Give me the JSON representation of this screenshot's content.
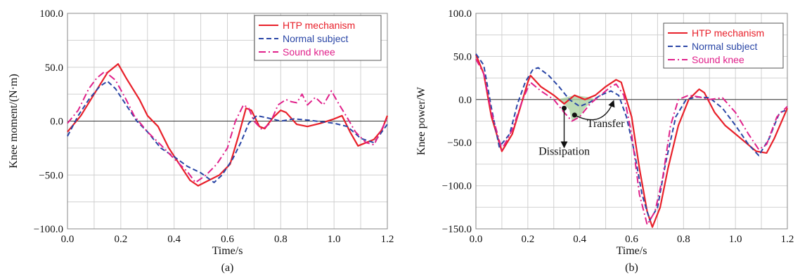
{
  "colors": {
    "htp": "#e8202a",
    "normal": "#2a46a6",
    "sound": "#e0208a",
    "grid": "#d0d0d0",
    "shade": "#a8cf9c"
  },
  "chart_data": [
    {
      "type": "line",
      "panel_label": "(a)",
      "xlabel": "Time/s",
      "ylabel": "Knee moment/(N·m)",
      "xlim": [
        0,
        1.2
      ],
      "ylim": [
        -100,
        100
      ],
      "x_ticks": [
        "0.0",
        "0.2",
        "0.4",
        "0.6",
        "0.8",
        "1.0",
        "1.2"
      ],
      "y_ticks": [
        "100.0",
        "50.0",
        "0.0",
        "−50.0",
        "−100.0"
      ],
      "grid": true,
      "legend": "top-right",
      "series": [
        {
          "name": "HTP mechanism",
          "style": "solid",
          "color": "htp",
          "points": [
            [
              0,
              -10
            ],
            [
              0.05,
              5
            ],
            [
              0.1,
              25
            ],
            [
              0.15,
              45
            ],
            [
              0.19,
              53
            ],
            [
              0.22,
              40
            ],
            [
              0.27,
              20
            ],
            [
              0.3,
              5
            ],
            [
              0.34,
              -5
            ],
            [
              0.38,
              -25
            ],
            [
              0.42,
              -40
            ],
            [
              0.46,
              -55
            ],
            [
              0.49,
              -60
            ],
            [
              0.53,
              -55
            ],
            [
              0.57,
              -50
            ],
            [
              0.61,
              -40
            ],
            [
              0.64,
              -15
            ],
            [
              0.67,
              12
            ],
            [
              0.69,
              10
            ],
            [
              0.72,
              -5
            ],
            [
              0.74,
              -7
            ],
            [
              0.77,
              3
            ],
            [
              0.8,
              10
            ],
            [
              0.82,
              8
            ],
            [
              0.86,
              -3
            ],
            [
              0.9,
              -5
            ],
            [
              0.95,
              -2
            ],
            [
              1.0,
              2
            ],
            [
              1.03,
              5
            ],
            [
              1.06,
              -10
            ],
            [
              1.09,
              -23
            ],
            [
              1.12,
              -20
            ],
            [
              1.15,
              -17
            ],
            [
              1.18,
              -8
            ],
            [
              1.2,
              5
            ]
          ]
        },
        {
          "name": "Normal subject",
          "style": "dashed",
          "color": "normal",
          "points": [
            [
              0,
              -14
            ],
            [
              0.04,
              5
            ],
            [
              0.08,
              20
            ],
            [
              0.12,
              32
            ],
            [
              0.15,
              37
            ],
            [
              0.18,
              30
            ],
            [
              0.22,
              15
            ],
            [
              0.26,
              0
            ],
            [
              0.3,
              -10
            ],
            [
              0.35,
              -25
            ],
            [
              0.4,
              -33
            ],
            [
              0.45,
              -42
            ],
            [
              0.5,
              -48
            ],
            [
              0.55,
              -57
            ],
            [
              0.58,
              -50
            ],
            [
              0.62,
              -35
            ],
            [
              0.65,
              -20
            ],
            [
              0.68,
              -2
            ],
            [
              0.71,
              5
            ],
            [
              0.75,
              3
            ],
            [
              0.8,
              0
            ],
            [
              0.85,
              2
            ],
            [
              0.9,
              1
            ],
            [
              1.0,
              -2
            ],
            [
              1.05,
              -5
            ],
            [
              1.1,
              -16
            ],
            [
              1.15,
              -20
            ],
            [
              1.2,
              -3
            ]
          ]
        },
        {
          "name": "Sound knee",
          "style": "dashdot",
          "color": "sound",
          "points": [
            [
              0,
              -2
            ],
            [
              0.04,
              10
            ],
            [
              0.08,
              30
            ],
            [
              0.11,
              40
            ],
            [
              0.14,
              46
            ],
            [
              0.18,
              38
            ],
            [
              0.22,
              20
            ],
            [
              0.25,
              5
            ],
            [
              0.3,
              -10
            ],
            [
              0.35,
              -22
            ],
            [
              0.4,
              -35
            ],
            [
              0.45,
              -47
            ],
            [
              0.48,
              -57
            ],
            [
              0.52,
              -50
            ],
            [
              0.56,
              -40
            ],
            [
              0.6,
              -25
            ],
            [
              0.63,
              0
            ],
            [
              0.66,
              15
            ],
            [
              0.68,
              12
            ],
            [
              0.7,
              0
            ],
            [
              0.73,
              -8
            ],
            [
              0.76,
              -2
            ],
            [
              0.79,
              15
            ],
            [
              0.82,
              20
            ],
            [
              0.84,
              18
            ],
            [
              0.86,
              17
            ],
            [
              0.88,
              25
            ],
            [
              0.9,
              15
            ],
            [
              0.93,
              22
            ],
            [
              0.96,
              15
            ],
            [
              0.99,
              28
            ],
            [
              1.02,
              15
            ],
            [
              1.05,
              3
            ],
            [
              1.08,
              -10
            ],
            [
              1.12,
              -20
            ],
            [
              1.15,
              -22
            ],
            [
              1.2,
              3
            ]
          ]
        }
      ]
    },
    {
      "type": "line",
      "panel_label": "(b)",
      "xlabel": "Time/s",
      "ylabel": "Knee power/W",
      "xlim": [
        0,
        1.2
      ],
      "ylim": [
        -150,
        100
      ],
      "x_ticks": [
        "0.0",
        "0.2",
        "0.4",
        "0.6",
        "0.8",
        "1.0",
        "1.2"
      ],
      "y_ticks": [
        "100.0",
        "50.0",
        "0.0",
        "−50.0",
        "−100.0",
        "−150.0"
      ],
      "grid": true,
      "legend": "top-right",
      "annotations": [
        "Transfer",
        "Dissipation"
      ],
      "series": [
        {
          "name": "HTP mechanism",
          "style": "solid",
          "color": "htp",
          "points": [
            [
              0,
              52
            ],
            [
              0.03,
              30
            ],
            [
              0.06,
              -20
            ],
            [
              0.1,
              -60
            ],
            [
              0.14,
              -40
            ],
            [
              0.17,
              -10
            ],
            [
              0.2,
              20
            ],
            [
              0.21,
              28
            ],
            [
              0.25,
              15
            ],
            [
              0.3,
              5
            ],
            [
              0.34,
              -5
            ],
            [
              0.38,
              5
            ],
            [
              0.42,
              0
            ],
            [
              0.46,
              5
            ],
            [
              0.5,
              15
            ],
            [
              0.54,
              23
            ],
            [
              0.56,
              20
            ],
            [
              0.6,
              -20
            ],
            [
              0.63,
              -80
            ],
            [
              0.66,
              -130
            ],
            [
              0.68,
              -148
            ],
            [
              0.71,
              -125
            ],
            [
              0.74,
              -80
            ],
            [
              0.78,
              -30
            ],
            [
              0.82,
              0
            ],
            [
              0.86,
              12
            ],
            [
              0.88,
              8
            ],
            [
              0.92,
              -15
            ],
            [
              0.96,
              -30
            ],
            [
              1.0,
              -40
            ],
            [
              1.04,
              -50
            ],
            [
              1.08,
              -60
            ],
            [
              1.12,
              -62
            ],
            [
              1.15,
              -45
            ],
            [
              1.2,
              -10
            ]
          ]
        },
        {
          "name": "Normal subject",
          "style": "dashed",
          "color": "normal",
          "points": [
            [
              0,
              53
            ],
            [
              0.03,
              40
            ],
            [
              0.06,
              -10
            ],
            [
              0.09,
              -55
            ],
            [
              0.13,
              -40
            ],
            [
              0.16,
              -5
            ],
            [
              0.19,
              20
            ],
            [
              0.22,
              35
            ],
            [
              0.24,
              37
            ],
            [
              0.28,
              28
            ],
            [
              0.32,
              15
            ],
            [
              0.36,
              0
            ],
            [
              0.4,
              -8
            ],
            [
              0.44,
              -3
            ],
            [
              0.48,
              5
            ],
            [
              0.52,
              10
            ],
            [
              0.55,
              5
            ],
            [
              0.58,
              -20
            ],
            [
              0.61,
              -60
            ],
            [
              0.64,
              -110
            ],
            [
              0.67,
              -140
            ],
            [
              0.7,
              -125
            ],
            [
              0.73,
              -75
            ],
            [
              0.77,
              -20
            ],
            [
              0.81,
              0
            ],
            [
              0.85,
              3
            ],
            [
              0.9,
              2
            ],
            [
              0.95,
              -10
            ],
            [
              1.0,
              -30
            ],
            [
              1.05,
              -52
            ],
            [
              1.09,
              -65
            ],
            [
              1.13,
              -45
            ],
            [
              1.17,
              -15
            ],
            [
              1.2,
              -12
            ]
          ]
        },
        {
          "name": "Sound knee",
          "style": "dashdot",
          "color": "sound",
          "points": [
            [
              0,
              47
            ],
            [
              0.03,
              30
            ],
            [
              0.06,
              -15
            ],
            [
              0.1,
              -58
            ],
            [
              0.14,
              -35
            ],
            [
              0.18,
              0
            ],
            [
              0.21,
              20
            ],
            [
              0.25,
              10
            ],
            [
              0.3,
              0
            ],
            [
              0.34,
              -15
            ],
            [
              0.37,
              -25
            ],
            [
              0.4,
              -20
            ],
            [
              0.44,
              -5
            ],
            [
              0.48,
              5
            ],
            [
              0.52,
              15
            ],
            [
              0.54,
              18
            ],
            [
              0.57,
              5
            ],
            [
              0.6,
              -40
            ],
            [
              0.63,
              -110
            ],
            [
              0.66,
              -145
            ],
            [
              0.69,
              -130
            ],
            [
              0.72,
              -90
            ],
            [
              0.75,
              -30
            ],
            [
              0.78,
              0
            ],
            [
              0.82,
              5
            ],
            [
              0.86,
              3
            ],
            [
              0.9,
              0
            ],
            [
              0.95,
              2
            ],
            [
              1.0,
              -15
            ],
            [
              1.05,
              -40
            ],
            [
              1.09,
              -58
            ],
            [
              1.12,
              -52
            ],
            [
              1.16,
              -20
            ],
            [
              1.2,
              -8
            ]
          ]
        }
      ]
    }
  ]
}
